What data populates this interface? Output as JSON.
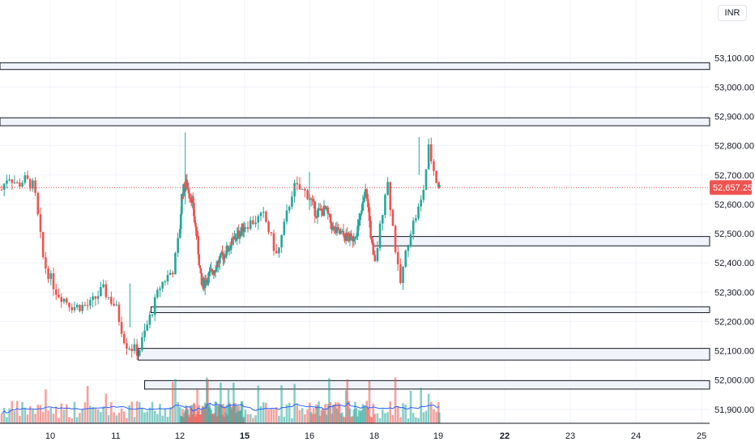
{
  "currency_label": "INR",
  "chart_data": {
    "type": "candlestick",
    "y_ticks": [
      "53,100.00",
      "53,000.00",
      "52,900.00",
      "52,800.00",
      "52,700.00",
      "52,600.00",
      "52,500.00",
      "52,400.00",
      "52,300.00",
      "52,200.00",
      "52,100.00",
      "52,000.00",
      "51,900.00"
    ],
    "y_tick_values": [
      53100,
      53000,
      52900,
      52800,
      52700,
      52600,
      52500,
      52400,
      52300,
      52200,
      52100,
      52000,
      51900
    ],
    "ylim": [
      51880,
      53145
    ],
    "x_ticks": [
      {
        "label": "10",
        "day": 10,
        "bold": false
      },
      {
        "label": "11",
        "day": 11,
        "bold": false
      },
      {
        "label": "12",
        "day": 12,
        "bold": false
      },
      {
        "label": "15",
        "day": 15,
        "bold": true
      },
      {
        "label": "16",
        "day": 16,
        "bold": false
      },
      {
        "label": "18",
        "day": 18,
        "bold": false
      },
      {
        "label": "19",
        "day": 19,
        "bold": false
      },
      {
        "label": "22",
        "day": 22,
        "bold": true
      },
      {
        "label": "23",
        "day": 23,
        "bold": false
      },
      {
        "label": "24",
        "day": 24,
        "bold": false
      },
      {
        "label": "25",
        "day": 25,
        "bold": false
      }
    ],
    "current_price": 52657.25,
    "current_price_label": "52,657.25",
    "colors": {
      "up": "#26a69a",
      "down": "#ef5350",
      "ma": "#2962ff",
      "zone_fill": "#f0f3fa",
      "zone_border": "#131722",
      "price_line": "#ef5350"
    },
    "zones": [
      {
        "low": 53060,
        "high": 53083,
        "from_day": 9.2
      },
      {
        "low": 52868,
        "high": 52895,
        "from_day": 9.2
      },
      {
        "low": 52458,
        "high": 52490,
        "from_day": 17.95
      },
      {
        "low": 52230,
        "high": 52250,
        "from_day": 11.55
      },
      {
        "low": 52068,
        "high": 52108,
        "from_day": 11.35
      },
      {
        "low": 51969,
        "high": 51998,
        "from_day": 11.45
      }
    ],
    "price_path": [
      {
        "day": 9.25,
        "price": 52650
      },
      {
        "day": 9.35,
        "price": 52700
      },
      {
        "day": 9.5,
        "price": 52665
      },
      {
        "day": 9.6,
        "price": 52685
      },
      {
        "day": 9.75,
        "price": 52660
      },
      {
        "day": 9.9,
        "price": 52400
      },
      {
        "day": 10.1,
        "price": 52300
      },
      {
        "day": 10.35,
        "price": 52250
      },
      {
        "day": 10.6,
        "price": 52255
      },
      {
        "day": 10.8,
        "price": 52310
      },
      {
        "day": 11.0,
        "price": 52250
      },
      {
        "day": 11.15,
        "price": 52125
      },
      {
        "day": 11.35,
        "price": 52095
      },
      {
        "day": 11.7,
        "price": 52325
      },
      {
        "day": 11.9,
        "price": 52380
      },
      {
        "day": 12.1,
        "price": 52640
      },
      {
        "day": 12.3,
        "price": 52670
      },
      {
        "day": 12.55,
        "price": 52620
      },
      {
        "day": 12.8,
        "price": 52480
      },
      {
        "day": 13.0,
        "price": 52320
      },
      {
        "day": 15.3,
        "price": 52560
      },
      {
        "day": 15.5,
        "price": 52420
      },
      {
        "day": 15.75,
        "price": 52660
      },
      {
        "day": 15.95,
        "price": 52640
      },
      {
        "day": 16.2,
        "price": 52570
      },
      {
        "day": 16.5,
        "price": 52580
      },
      {
        "day": 16.75,
        "price": 52510
      },
      {
        "day": 17.1,
        "price": 52490
      },
      {
        "day": 17.3,
        "price": 52480
      },
      {
        "day": 17.5,
        "price": 52520
      },
      {
        "day": 17.75,
        "price": 52650
      },
      {
        "day": 18.0,
        "price": 52380
      },
      {
        "day": 18.2,
        "price": 52690
      },
      {
        "day": 18.4,
        "price": 52320
      },
      {
        "day": 18.55,
        "price": 52500
      },
      {
        "day": 18.75,
        "price": 52620
      },
      {
        "day": 18.85,
        "price": 52790
      },
      {
        "day": 18.97,
        "price": 52680
      },
      {
        "day": 19.05,
        "price": 52657
      }
    ],
    "spikes": [
      {
        "day": 12.25,
        "high": 52845,
        "low": 52600
      },
      {
        "day": 11.22,
        "high": 52330,
        "low": 52180
      },
      {
        "day": 16.0,
        "high": 52710,
        "low": 52580
      },
      {
        "day": 18.7,
        "high": 52830,
        "low": 52700
      }
    ]
  }
}
